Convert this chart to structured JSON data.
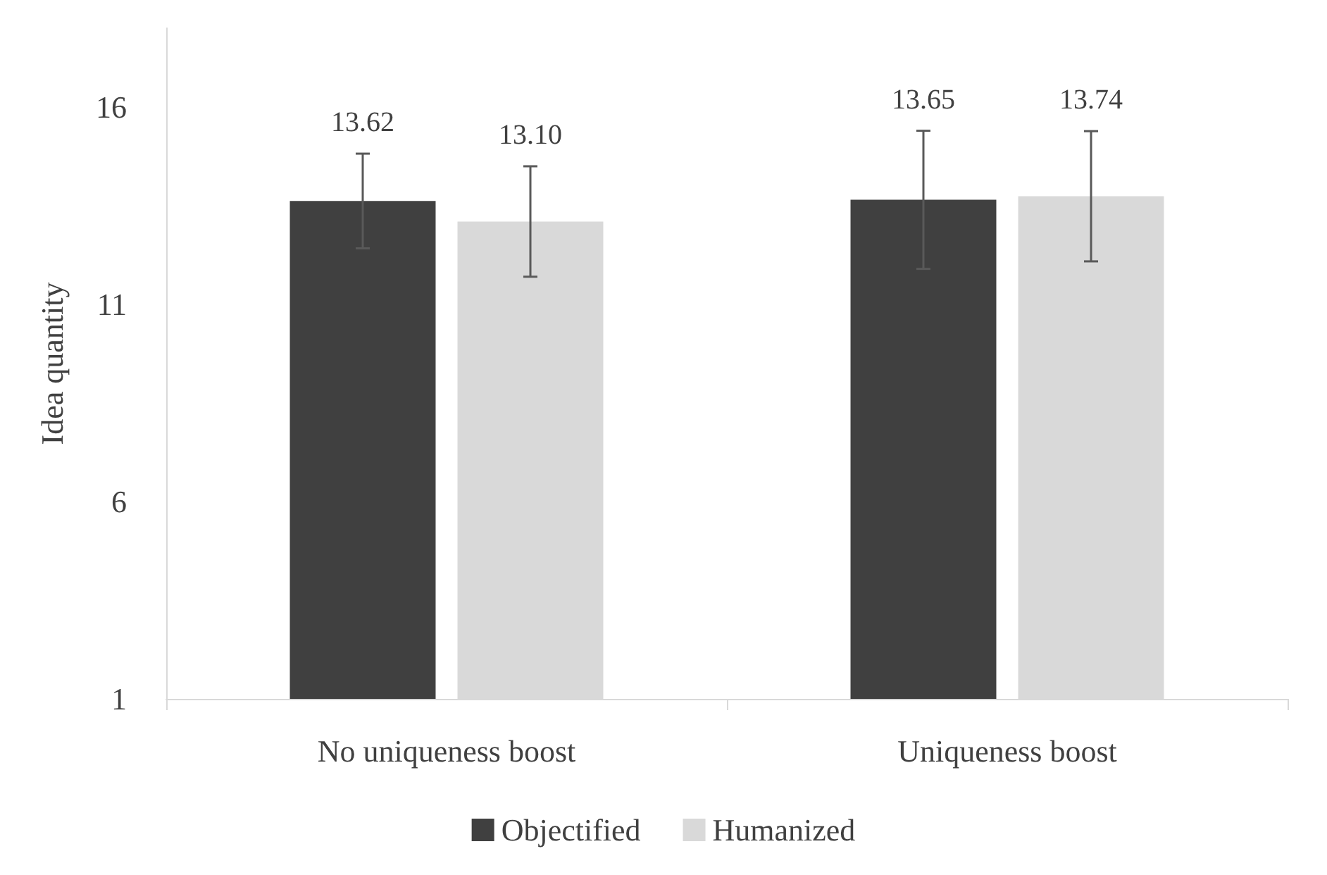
{
  "chart_data": {
    "type": "bar",
    "ylabel": "Idea quantity",
    "categories": [
      "No uniqueness boost",
      "Uniqueness boost"
    ],
    "series": [
      {
        "name": "Objectified",
        "color": "#404040",
        "values": [
          13.62,
          13.65
        ],
        "errors": [
          1.2,
          1.75
        ],
        "value_labels": [
          "13.62",
          "13.65"
        ]
      },
      {
        "name": "Humanized",
        "color": "#d9d9d9",
        "values": [
          13.1,
          13.74
        ],
        "errors": [
          1.4,
          1.65
        ],
        "value_labels": [
          "13.10",
          "13.74"
        ]
      }
    ],
    "ylim": [
      1,
      18
    ],
    "yticks": [
      1,
      6,
      11,
      16
    ],
    "grid": false,
    "legend": "bottom"
  }
}
